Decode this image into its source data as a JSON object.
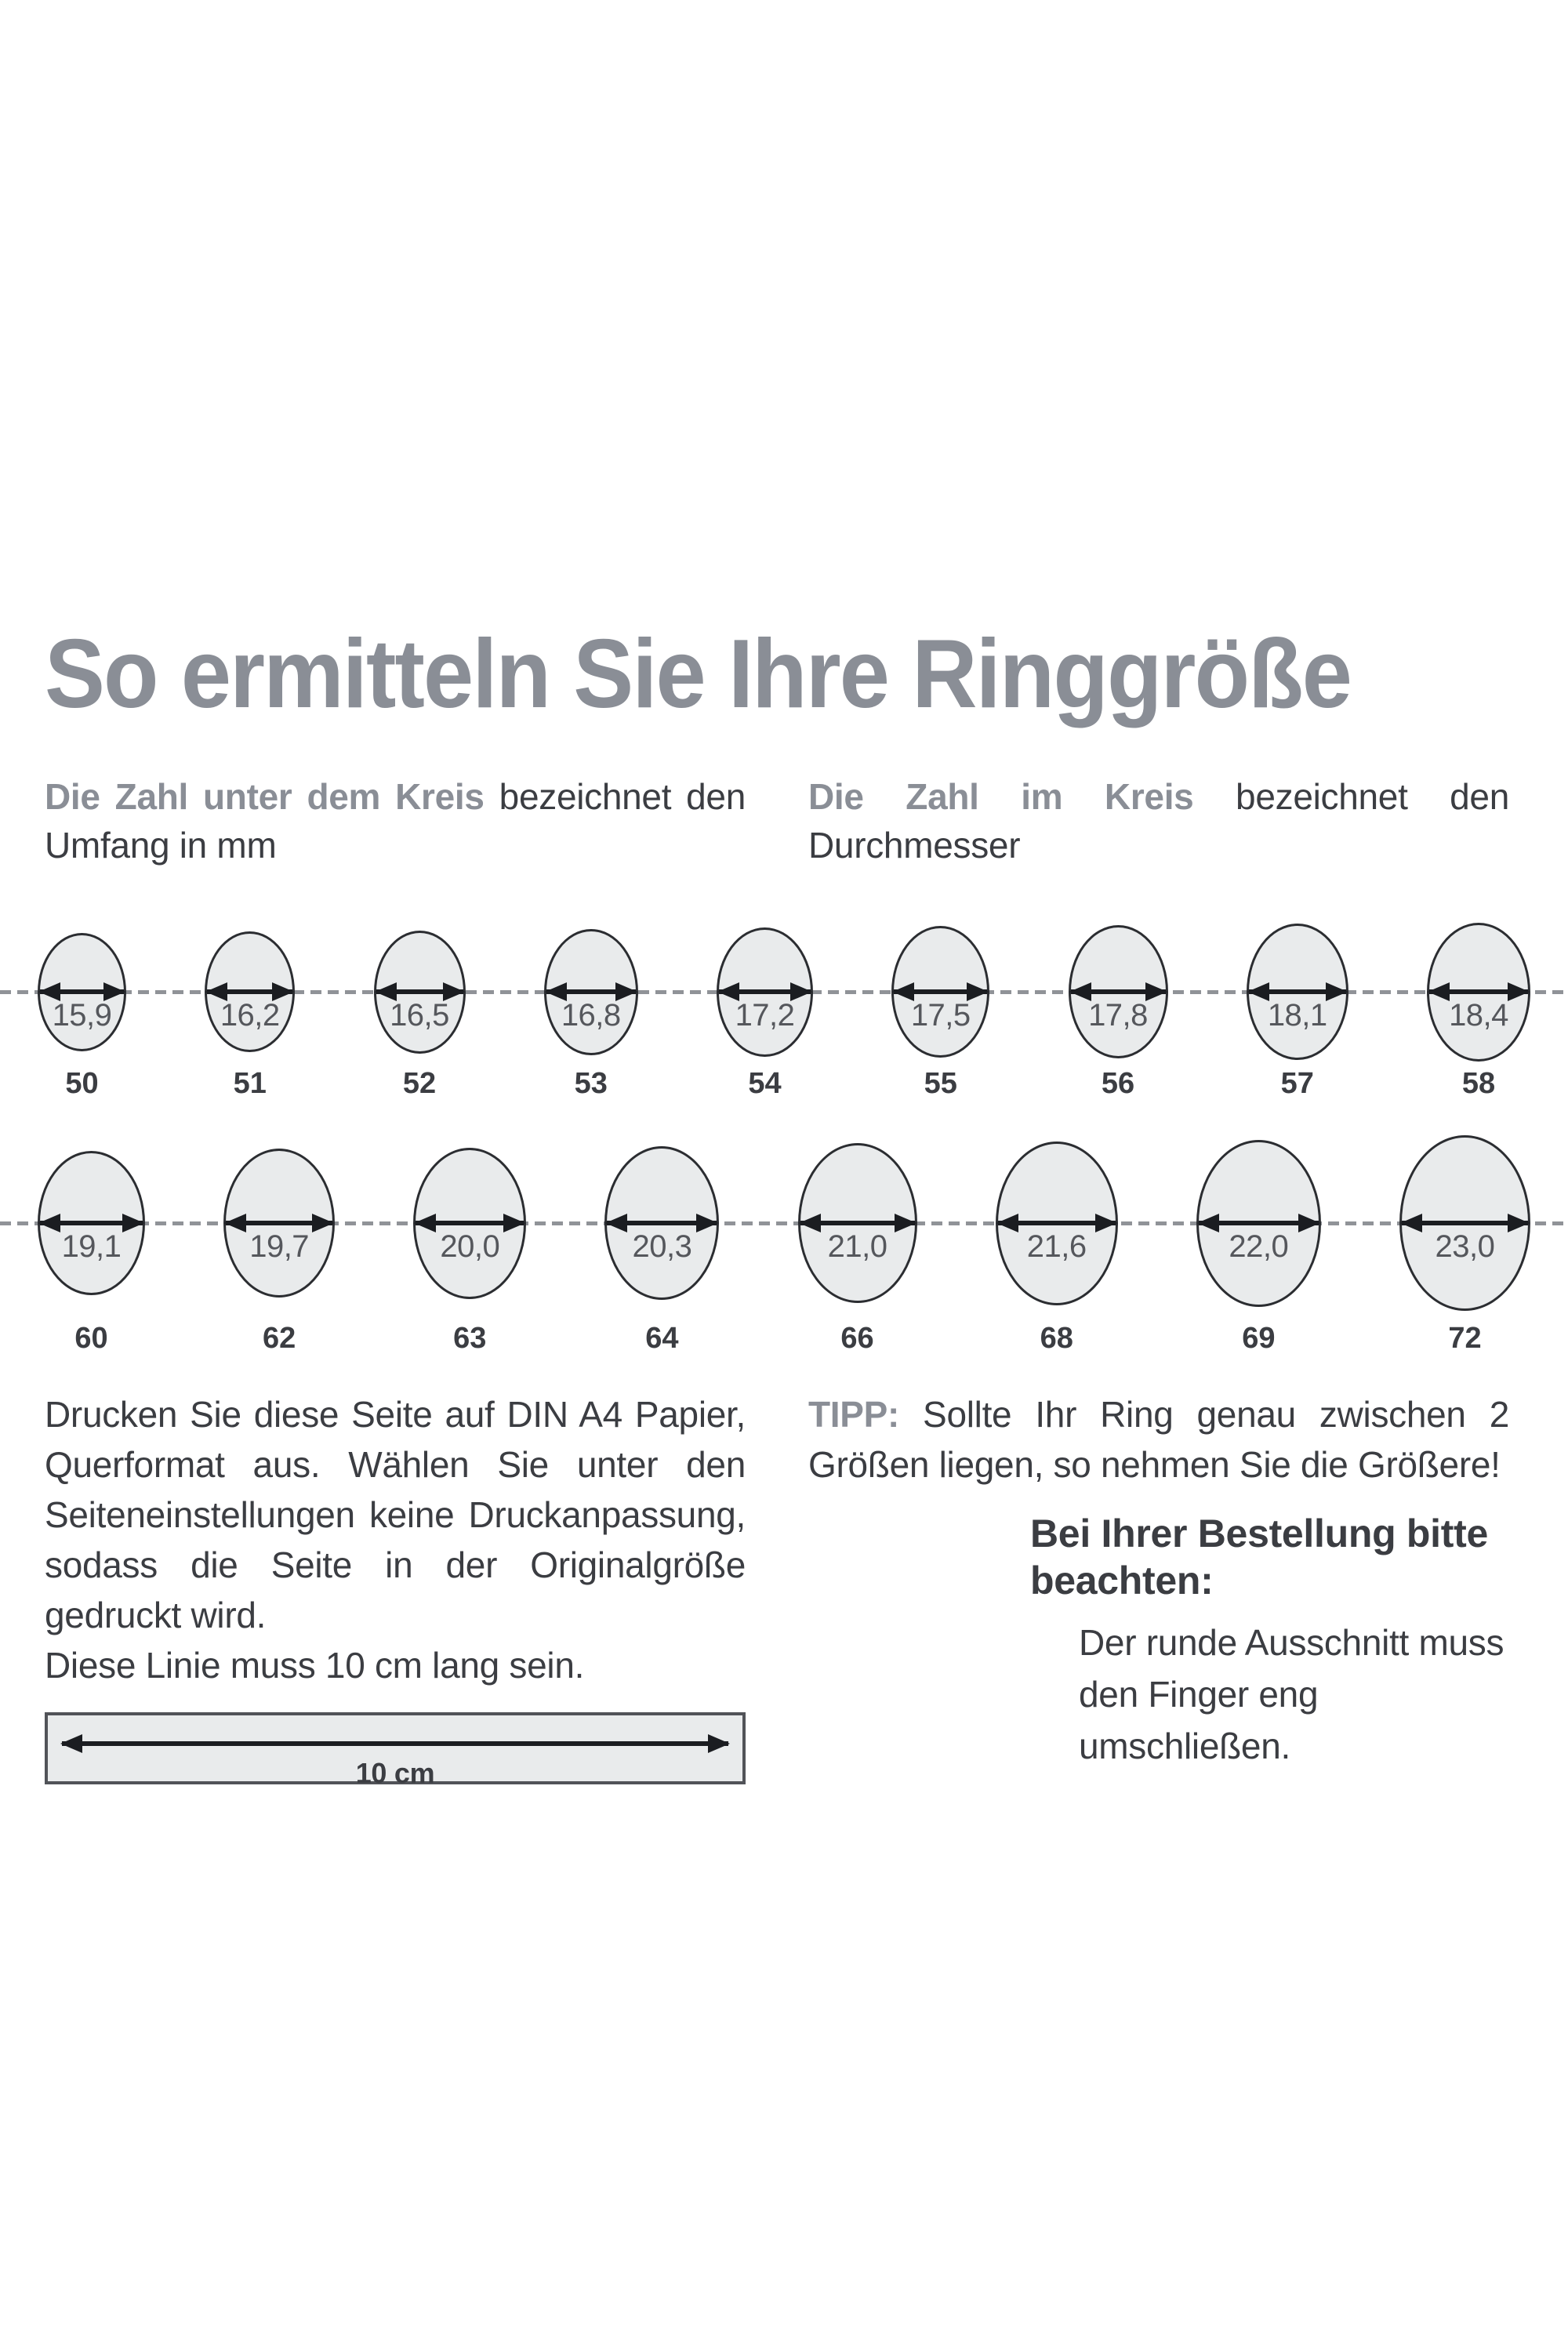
{
  "colors": {
    "accent": "#8a8e96",
    "text": "#3b3d42",
    "muted-num": "#55575c",
    "circle-fill": "#e9ebec",
    "circle-stroke": "#2b2d31",
    "dash": "#909398",
    "arrow": "#1b1d21",
    "ruler-border": "#515358"
  },
  "title": "So ermitteln Sie Ihre Ringgröße",
  "legend_left": {
    "bold": "Die Zahl unter dem Kreis",
    "rest": " bezeichnet den Umfang in mm"
  },
  "legend_right": {
    "bold": "Die Zahl im Kreis",
    "rest": " bezeichnet den Durchmesser"
  },
  "row1_circles": [
    {
      "d": "15,9",
      "u": "50"
    },
    {
      "d": "16,2",
      "u": "51"
    },
    {
      "d": "16,5",
      "u": "52"
    },
    {
      "d": "16,8",
      "u": "53"
    },
    {
      "d": "17,2",
      "u": "54"
    },
    {
      "d": "17,5",
      "u": "55"
    },
    {
      "d": "17,8",
      "u": "56"
    },
    {
      "d": "18,1",
      "u": "57"
    },
    {
      "d": "18,4",
      "u": "58"
    }
  ],
  "row2_circles": [
    {
      "d": "19,1",
      "u": "60"
    },
    {
      "d": "19,7",
      "u": "62"
    },
    {
      "d": "20,0",
      "u": "63"
    },
    {
      "d": "20,3",
      "u": "64"
    },
    {
      "d": "21,0",
      "u": "66"
    },
    {
      "d": "21,6",
      "u": "68"
    },
    {
      "d": "22,0",
      "u": "69"
    },
    {
      "d": "23,0",
      "u": "72"
    }
  ],
  "print_instructions": {
    "paragraph": "Drucken Sie diese Seite auf DIN A4 Papier, Querformat aus. Wählen Sie unter den Seiteneinstellungen keine Druckanpassung, sodass die Seite in der Originalgröße gedruckt wird.",
    "line": "Diese Linie muss 10 cm lang sein."
  },
  "ruler": {
    "label": "10 cm"
  },
  "tip": {
    "label": "TIPP:",
    "text": " Sollte Ihr Ring genau zwischen 2 Größen liegen, so nehmen Sie die Größere!"
  },
  "order_note": {
    "heading": "Bei Ihrer Bestellung bitte beachten:",
    "body": "Der runde Ausschnitt muss den Finger eng umschließen."
  }
}
